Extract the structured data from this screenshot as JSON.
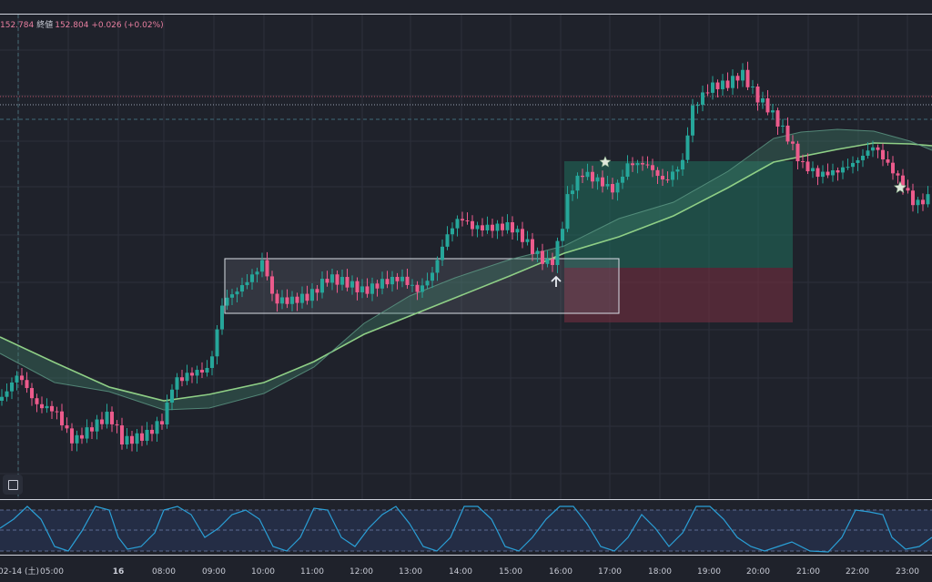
{
  "chart_data": [
    {
      "type": "candlestick",
      "legend": {
        "open_value": "152.784",
        "close_label": "終値",
        "close_value": "152.804",
        "change": "+0.026 (+0.02%)"
      },
      "x_ticks": [
        "02-14 (土)",
        "05:00",
        "16",
        "08:00",
        "09:00",
        "10:00",
        "11:00",
        "12:00",
        "13:00",
        "14:00",
        "15:00",
        "15:00",
        "16:00",
        "17:00",
        "18:00",
        "19:00",
        "20:00",
        "21:00",
        "22:00",
        "23:00"
      ],
      "bull_color": "#26a69a",
      "bear_color": "#ec5b8c",
      "moving_average_color": "#8fcf86",
      "cloud_color": "#3f7d6a",
      "zones": [
        {
          "name": "consolidation-box",
          "color": "#9aa1b1"
        },
        {
          "name": "take-profit-zone",
          "color": "#1f6f5d"
        },
        {
          "name": "stop-loss-zone",
          "color": "#7a2f42"
        }
      ],
      "markers": [
        "star-icon",
        "arrow-up-icon",
        "star-icon"
      ]
    },
    {
      "type": "line",
      "name": "oscillator",
      "line_color": "#2a9fd6",
      "levels": [
        "upper",
        "middle",
        "lower"
      ]
    }
  ],
  "toolbar": {
    "tool_icon": "square-select-icon"
  }
}
